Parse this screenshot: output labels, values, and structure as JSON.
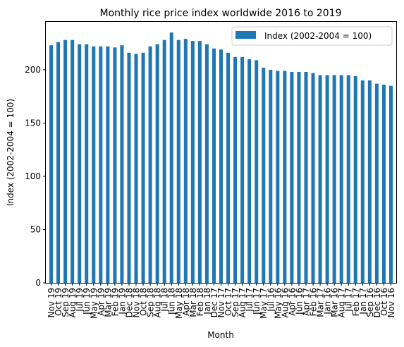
{
  "chart_data": {
    "type": "bar",
    "title": "Monthly rice price index worldwide 2016 to 2019",
    "xlabel": "Month",
    "ylabel": "Index (2002-2004 = 100)",
    "ylim": [
      0,
      245
    ],
    "yticks": [
      0,
      50,
      100,
      150,
      200
    ],
    "grid": false,
    "legend_position": "top-right",
    "bar_color": "#1f77b4",
    "categories": [
      "Nov 19",
      "Oct 19",
      "Sep 19",
      "Aug 19",
      "Jul 19",
      "Jun 19",
      "May 19",
      "Apr 19",
      "Mar 19",
      "Feb 19",
      "Jan 19",
      "Dec 18",
      "Nov 18",
      "Oct 18",
      "Sep 18",
      "Aug 18",
      "Jul 18",
      "Jun 18",
      "May 18",
      "Apr 18",
      "Mar 18",
      "Feb 18",
      "Jan 18",
      "Dec 17",
      "Nov 17",
      "Oct 17",
      "Sep 17",
      "Aug 17",
      "Jul 17",
      "Jun 17",
      "May 17",
      "Jul 16",
      "May 16",
      "Aug 16",
      "Apr 16",
      "Jun 16",
      "Apr 17",
      "Feb 16",
      "Mar 17",
      "Jan 16",
      "Mar 16",
      "Aug 17",
      "Jul 17",
      "Feb 17",
      "Jan 17",
      "Sep 16",
      "Dec 16",
      "Oct 16",
      "Nov 16"
    ],
    "series": [
      {
        "name": "Index (2002-2004 = 100)",
        "values": [
          223,
          226,
          228,
          228,
          224,
          224,
          222,
          222,
          222,
          221,
          223,
          216,
          215,
          216,
          222,
          224,
          228,
          235,
          228,
          229,
          227,
          227,
          224,
          220,
          219,
          216,
          212,
          212,
          210,
          209,
          202,
          200,
          199,
          199,
          198,
          198,
          198,
          197,
          195,
          195,
          195,
          195,
          195,
          194,
          190,
          190,
          187,
          186,
          185
        ]
      }
    ]
  }
}
